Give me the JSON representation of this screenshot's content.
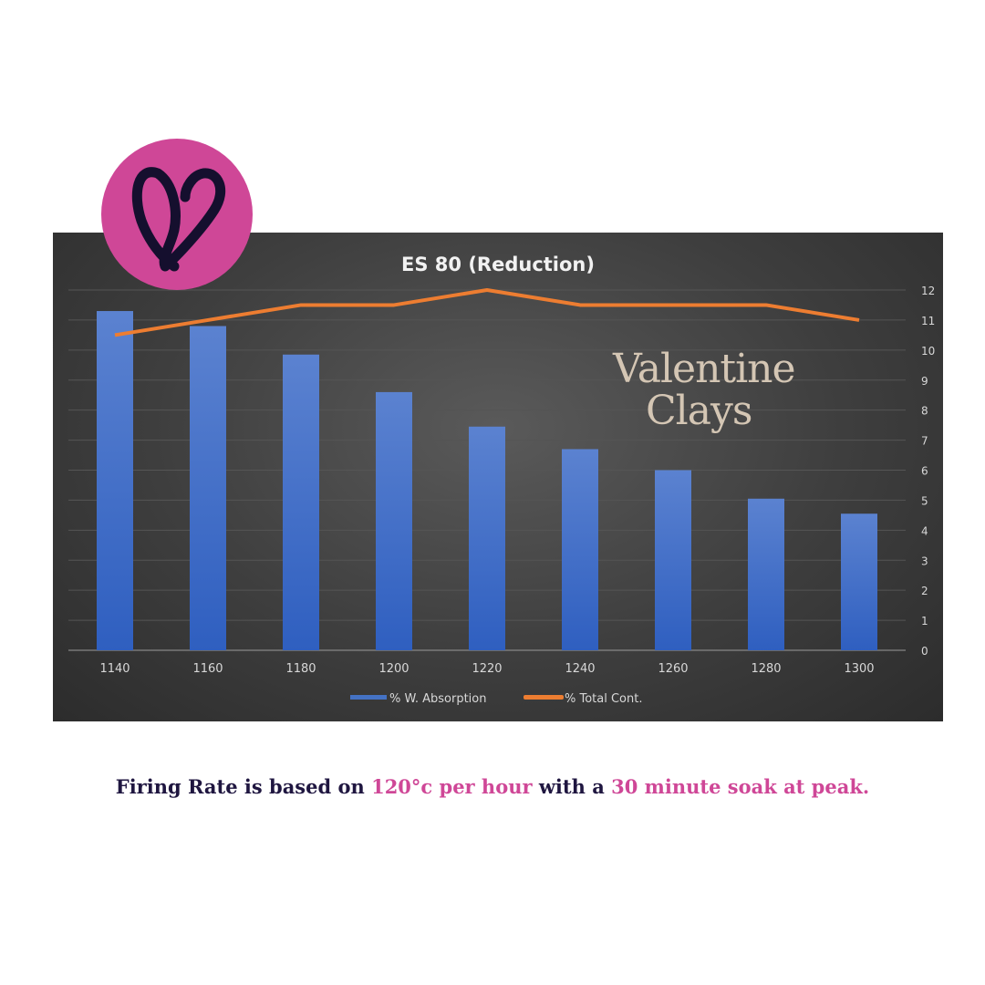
{
  "chart_data": {
    "type": "bar",
    "title": "ES 80 (Reduction)",
    "categories": [
      "1140",
      "1160",
      "1180",
      "1200",
      "1220",
      "1240",
      "1260",
      "1280",
      "1300"
    ],
    "series": [
      {
        "name": "% W. Absorption",
        "kind": "bar",
        "color": "#4472c4",
        "values": [
          11.3,
          10.8,
          9.85,
          8.6,
          7.45,
          6.7,
          6.0,
          5.05,
          4.55
        ]
      },
      {
        "name": "% Total Cont.",
        "kind": "line",
        "color": "#ed7d31",
        "values": [
          10.5,
          11.0,
          11.5,
          11.5,
          12.0,
          11.5,
          11.5,
          11.5,
          11.0
        ]
      }
    ],
    "y_ticks": [
      "0",
      "1",
      "2",
      "3",
      "4",
      "5",
      "6",
      "7",
      "8",
      "9",
      "10",
      "11",
      "12"
    ],
    "ylim": [
      0,
      12
    ],
    "y_axis_side": "right",
    "grid": true,
    "legend_position": "bottom",
    "background": "#3a3a3a"
  },
  "logo": {
    "brand": "Valentine Clays",
    "line1": "Valentine",
    "line2": "Clays",
    "badge_color": "#cf4797"
  },
  "caption": {
    "part1": "Firing Rate is based on ",
    "highlight1": "120°c per hour",
    "part2": " with a ",
    "highlight2": "30 minute soak at peak.",
    "highlight_color": "#cf4797"
  }
}
